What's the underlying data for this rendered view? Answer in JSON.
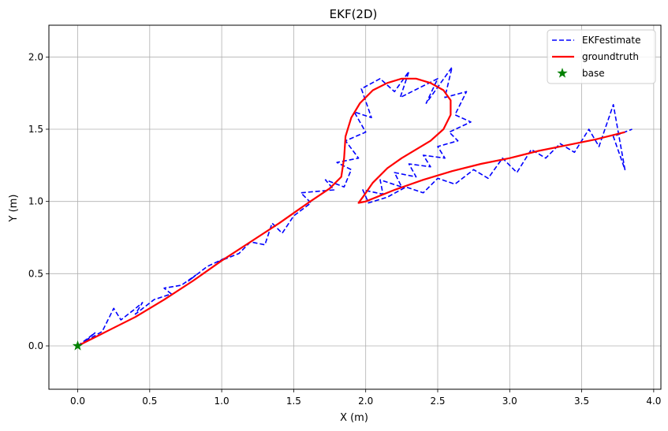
{
  "chart_data": {
    "type": "line",
    "title": "EKF(2D)",
    "xlabel": "X (m)",
    "ylabel": "Y (m)",
    "xlim": [
      -0.2,
      4.05
    ],
    "ylim": [
      -0.3,
      2.22
    ],
    "xticks": [
      0.0,
      0.5,
      1.0,
      1.5,
      2.0,
      2.5,
      3.0,
      3.5,
      4.0
    ],
    "xtick_labels": [
      "0.0",
      "0.5",
      "1.0",
      "1.5",
      "2.0",
      "2.5",
      "3.0",
      "3.5",
      "4.0"
    ],
    "yticks": [
      0.0,
      0.5,
      1.0,
      1.5,
      2.0
    ],
    "ytick_labels": [
      "0.0",
      "0.5",
      "1.0",
      "1.5",
      "2.0"
    ],
    "grid": true,
    "legend_position": "top-right",
    "series": [
      {
        "name": "groundtruth",
        "style": "solid",
        "color": "#ff0000",
        "points": [
          [
            0.0,
            0.0
          ],
          [
            0.2,
            0.1
          ],
          [
            0.4,
            0.2
          ],
          [
            0.6,
            0.32
          ],
          [
            0.8,
            0.45
          ],
          [
            1.0,
            0.59
          ],
          [
            1.2,
            0.72
          ],
          [
            1.4,
            0.85
          ],
          [
            1.6,
            0.99
          ],
          [
            1.75,
            1.09
          ],
          [
            1.83,
            1.17
          ],
          [
            1.85,
            1.3
          ],
          [
            1.86,
            1.45
          ],
          [
            1.9,
            1.58
          ],
          [
            1.96,
            1.68
          ],
          [
            2.05,
            1.77
          ],
          [
            2.15,
            1.82
          ],
          [
            2.25,
            1.85
          ],
          [
            2.35,
            1.85
          ],
          [
            2.45,
            1.82
          ],
          [
            2.54,
            1.77
          ],
          [
            2.59,
            1.7
          ],
          [
            2.59,
            1.6
          ],
          [
            2.54,
            1.5
          ],
          [
            2.45,
            1.42
          ],
          [
            2.35,
            1.36
          ],
          [
            2.25,
            1.3
          ],
          [
            2.15,
            1.23
          ],
          [
            2.05,
            1.13
          ],
          [
            1.98,
            1.03
          ],
          [
            1.95,
            0.99
          ],
          [
            2.0,
            1.0
          ],
          [
            2.2,
            1.08
          ],
          [
            2.4,
            1.15
          ],
          [
            2.6,
            1.21
          ],
          [
            2.8,
            1.26
          ],
          [
            3.0,
            1.3
          ],
          [
            3.2,
            1.35
          ],
          [
            3.4,
            1.39
          ],
          [
            3.6,
            1.43
          ],
          [
            3.8,
            1.48
          ]
        ]
      },
      {
        "name": "EKFestimate",
        "style": "dashed",
        "color": "#0000ff",
        "points": [
          [
            0.0,
            0.0
          ],
          [
            0.12,
            0.09
          ],
          [
            0.05,
            0.03
          ],
          [
            0.17,
            0.1
          ],
          [
            0.25,
            0.26
          ],
          [
            0.3,
            0.18
          ],
          [
            0.39,
            0.25
          ],
          [
            0.45,
            0.3
          ],
          [
            0.4,
            0.22
          ],
          [
            0.53,
            0.32
          ],
          [
            0.65,
            0.36
          ],
          [
            0.6,
            0.4
          ],
          [
            0.72,
            0.42
          ],
          [
            0.82,
            0.49
          ],
          [
            0.77,
            0.45
          ],
          [
            0.9,
            0.55
          ],
          [
            1.05,
            0.62
          ],
          [
            0.97,
            0.58
          ],
          [
            1.12,
            0.64
          ],
          [
            1.2,
            0.72
          ],
          [
            1.3,
            0.7
          ],
          [
            1.35,
            0.85
          ],
          [
            1.42,
            0.78
          ],
          [
            1.5,
            0.9
          ],
          [
            1.62,
            0.99
          ],
          [
            1.55,
            1.06
          ],
          [
            1.78,
            1.08
          ],
          [
            1.72,
            1.15
          ],
          [
            1.85,
            1.1
          ],
          [
            1.9,
            1.22
          ],
          [
            1.8,
            1.27
          ],
          [
            1.95,
            1.3
          ],
          [
            1.86,
            1.42
          ],
          [
            2.0,
            1.48
          ],
          [
            1.92,
            1.62
          ],
          [
            2.04,
            1.58
          ],
          [
            1.97,
            1.78
          ],
          [
            2.1,
            1.85
          ],
          [
            2.2,
            1.76
          ],
          [
            2.3,
            1.9
          ],
          [
            2.24,
            1.72
          ],
          [
            2.38,
            1.79
          ],
          [
            2.5,
            1.85
          ],
          [
            2.42,
            1.68
          ],
          [
            2.6,
            1.93
          ],
          [
            2.55,
            1.72
          ],
          [
            2.7,
            1.76
          ],
          [
            2.62,
            1.6
          ],
          [
            2.73,
            1.55
          ],
          [
            2.58,
            1.48
          ],
          [
            2.64,
            1.42
          ],
          [
            2.5,
            1.38
          ],
          [
            2.55,
            1.3
          ],
          [
            2.4,
            1.32
          ],
          [
            2.45,
            1.24
          ],
          [
            2.3,
            1.26
          ],
          [
            2.35,
            1.17
          ],
          [
            2.2,
            1.2
          ],
          [
            2.25,
            1.1
          ],
          [
            2.1,
            1.15
          ],
          [
            2.12,
            1.05
          ],
          [
            1.98,
            1.08
          ],
          [
            2.02,
            0.99
          ],
          [
            2.15,
            1.03
          ],
          [
            2.28,
            1.1
          ],
          [
            2.4,
            1.06
          ],
          [
            2.5,
            1.16
          ],
          [
            2.62,
            1.12
          ],
          [
            2.75,
            1.22
          ],
          [
            2.85,
            1.16
          ],
          [
            2.95,
            1.3
          ],
          [
            3.05,
            1.2
          ],
          [
            3.15,
            1.36
          ],
          [
            3.25,
            1.3
          ],
          [
            3.35,
            1.4
          ],
          [
            3.45,
            1.34
          ],
          [
            3.55,
            1.5
          ],
          [
            3.62,
            1.38
          ],
          [
            3.72,
            1.67
          ],
          [
            3.8,
            1.22
          ],
          [
            3.72,
            1.45
          ],
          [
            3.85,
            1.5
          ]
        ]
      },
      {
        "name": "base",
        "style": "marker-star",
        "color": "#008000",
        "points": [
          [
            0.0,
            0.0
          ]
        ]
      }
    ]
  }
}
